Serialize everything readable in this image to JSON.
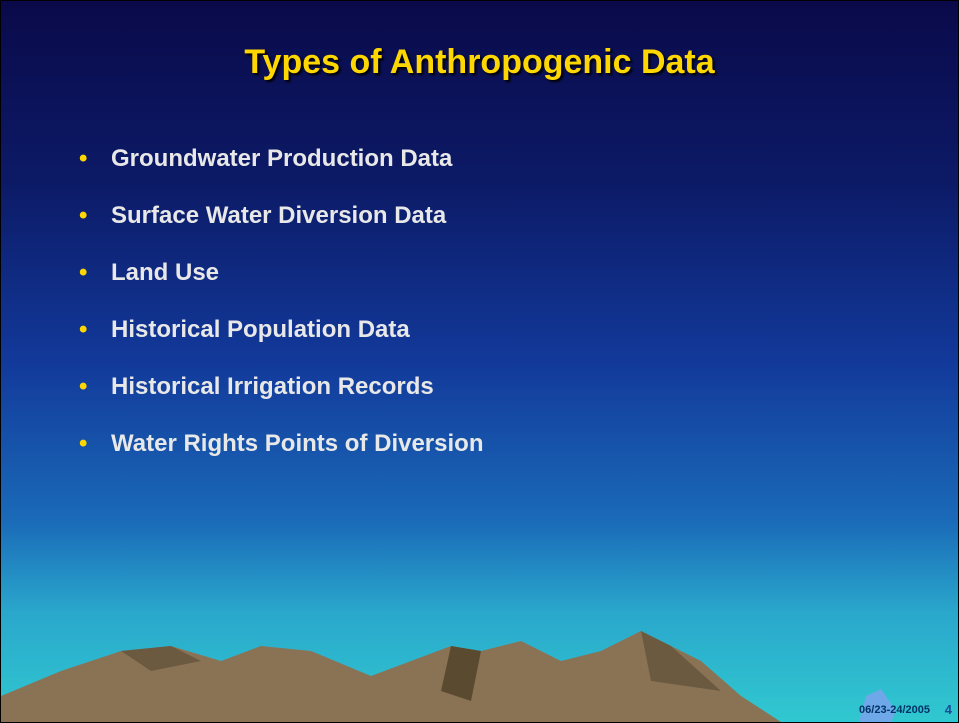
{
  "title": "Types of Anthropogenic Data",
  "bullets": [
    "Groundwater Production Data",
    "Surface Water Diversion Data",
    "Land Use",
    "Historical Population Data",
    "Historical Irrigation Records",
    "Water Rights Points of Diversion"
  ],
  "footer": {
    "date": "06/23-24/2005",
    "page": "4"
  }
}
